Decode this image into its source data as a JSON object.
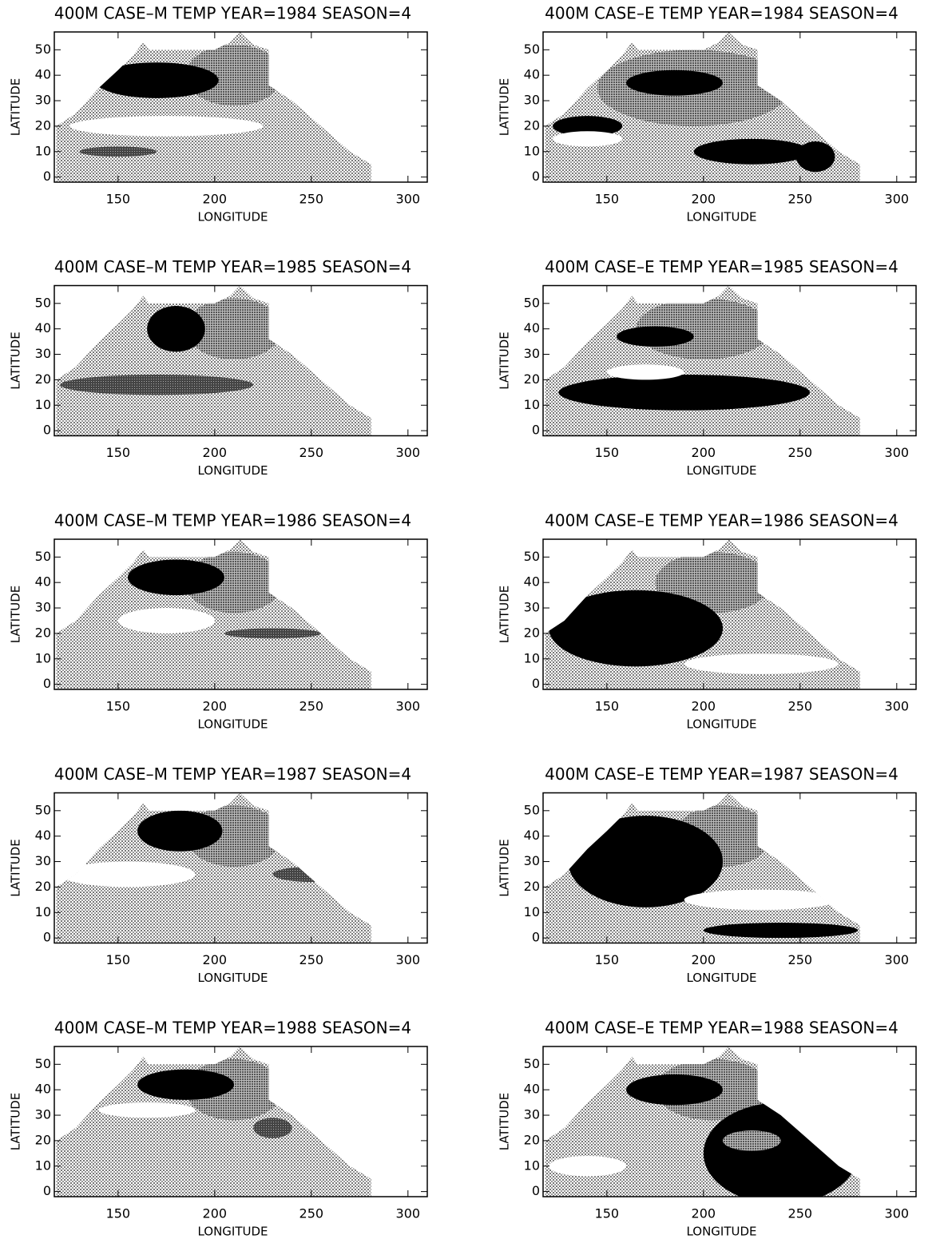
{
  "chart_data": [
    {
      "type": "contour",
      "title": "400M CASE–M TEMP YEAR=1984 SEASON=4",
      "xlabel": "LONGITUDE",
      "ylabel": "LATITUDE",
      "xlim": [
        117,
        310
      ],
      "ylim": [
        -2,
        57
      ],
      "xticks": [
        150,
        200,
        250,
        300
      ],
      "yticks": [
        0,
        10,
        20,
        30,
        40,
        50
      ]
    },
    {
      "type": "contour",
      "title": "400M CASE–E TEMP YEAR=1984 SEASON=4",
      "xlabel": "LONGITUDE",
      "ylabel": "LATITUDE",
      "xlim": [
        117,
        310
      ],
      "ylim": [
        -2,
        57
      ],
      "xticks": [
        150,
        200,
        250,
        300
      ],
      "yticks": [
        0,
        10,
        20,
        30,
        40,
        50
      ]
    },
    {
      "type": "contour",
      "title": "400M CASE–M TEMP YEAR=1985 SEASON=4",
      "xlabel": "LONGITUDE",
      "ylabel": "LATITUDE",
      "xlim": [
        117,
        310
      ],
      "ylim": [
        -2,
        57
      ],
      "xticks": [
        150,
        200,
        250,
        300
      ],
      "yticks": [
        0,
        10,
        20,
        30,
        40,
        50
      ]
    },
    {
      "type": "contour",
      "title": "400M CASE–E TEMP YEAR=1985 SEASON=4",
      "xlabel": "LONGITUDE",
      "ylabel": "LATITUDE",
      "xlim": [
        117,
        310
      ],
      "ylim": [
        -2,
        57
      ],
      "xticks": [
        150,
        200,
        250,
        300
      ],
      "yticks": [
        0,
        10,
        20,
        30,
        40,
        50
      ]
    },
    {
      "type": "contour",
      "title": "400M CASE–M TEMP YEAR=1986 SEASON=4",
      "xlabel": "LONGITUDE",
      "ylabel": "LATITUDE",
      "xlim": [
        117,
        310
      ],
      "ylim": [
        -2,
        57
      ],
      "xticks": [
        150,
        200,
        250,
        300
      ],
      "yticks": [
        0,
        10,
        20,
        30,
        40,
        50
      ]
    },
    {
      "type": "contour",
      "title": "400M CASE–E TEMP YEAR=1986 SEASON=4",
      "xlabel": "LONGITUDE",
      "ylabel": "LATITUDE",
      "xlim": [
        117,
        310
      ],
      "ylim": [
        -2,
        57
      ],
      "xticks": [
        150,
        200,
        250,
        300
      ],
      "yticks": [
        0,
        10,
        20,
        30,
        40,
        50
      ]
    },
    {
      "type": "contour",
      "title": "400M CASE–M TEMP YEAR=1987 SEASON=4",
      "xlabel": "LONGITUDE",
      "ylabel": "LATITUDE",
      "xlim": [
        117,
        310
      ],
      "ylim": [
        -2,
        57
      ],
      "xticks": [
        150,
        200,
        250,
        300
      ],
      "yticks": [
        0,
        10,
        20,
        30,
        40,
        50
      ]
    },
    {
      "type": "contour",
      "title": "400M CASE–E TEMP YEAR=1987 SEASON=4",
      "xlabel": "LONGITUDE",
      "ylabel": "LATITUDE",
      "xlim": [
        117,
        310
      ],
      "ylim": [
        -2,
        57
      ],
      "xticks": [
        150,
        200,
        250,
        300
      ],
      "yticks": [
        0,
        10,
        20,
        30,
        40,
        50
      ]
    },
    {
      "type": "contour",
      "title": "400M CASE–M TEMP YEAR=1988 SEASON=4",
      "xlabel": "LONGITUDE",
      "ylabel": "LATITUDE",
      "xlim": [
        117,
        310
      ],
      "ylim": [
        -2,
        57
      ],
      "xticks": [
        150,
        200,
        250,
        300
      ],
      "yticks": [
        0,
        10,
        20,
        30,
        40,
        50
      ]
    },
    {
      "type": "contour",
      "title": "400M CASE–E TEMP YEAR=1988 SEASON=4",
      "xlabel": "LONGITUDE",
      "ylabel": "LATITUDE",
      "xlim": [
        117,
        310
      ],
      "ylim": [
        -2,
        57
      ],
      "xticks": [
        150,
        200,
        250,
        300
      ],
      "yticks": [
        0,
        10,
        20,
        30,
        40,
        50
      ]
    }
  ]
}
